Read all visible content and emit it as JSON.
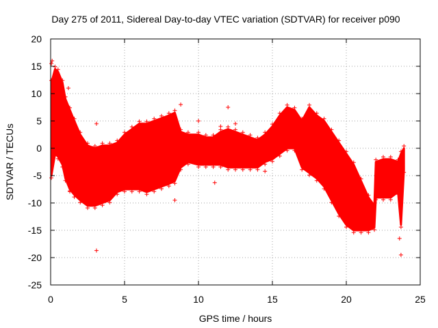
{
  "chart_data": {
    "type": "scatter",
    "title": "Day 275 of 2011, Sidereal Day-to-day VTEC variation (SDTVAR) for receiver p090",
    "xlabel": "GPS time / hours",
    "ylabel": "SDTVAR / TECUs",
    "xlim": [
      0,
      25
    ],
    "ylim": [
      -25,
      20
    ],
    "xticks": [
      0,
      5,
      10,
      15,
      20,
      25
    ],
    "yticks": [
      -25,
      -20,
      -15,
      -10,
      -5,
      0,
      5,
      10,
      15,
      20
    ],
    "xtick_labels": [
      "0",
      "5",
      "10",
      "15",
      "20",
      "25"
    ],
    "ytick_labels": [
      "-25",
      "-20",
      "-15",
      "-10",
      "-5",
      "0",
      "5",
      "10",
      "15",
      "20"
    ],
    "grid": true,
    "marker": "+",
    "color": "#ff0000",
    "series": [
      {
        "name": "p090",
        "envelope": {
          "x": [
            0.05,
            0.3,
            0.5,
            0.8,
            1.0,
            1.3,
            1.6,
            2.0,
            2.5,
            3.0,
            3.5,
            4.0,
            4.5,
            5.0,
            5.5,
            6.0,
            6.5,
            7.0,
            7.5,
            8.0,
            8.4,
            8.8,
            9.3,
            10.0,
            10.5,
            11.0,
            11.5,
            12.0,
            12.5,
            13.0,
            13.5,
            14.0,
            14.5,
            15.0,
            15.5,
            16.0,
            16.5,
            17.0,
            17.5,
            18.0,
            18.5,
            19.0,
            19.5,
            20.0,
            20.5,
            21.0,
            21.5,
            21.9,
            22.0,
            22.5,
            23.0,
            23.5,
            23.7,
            23.9
          ],
          "upper": [
            12.0,
            14.5,
            14.0,
            12.0,
            9.0,
            7.0,
            5.0,
            2.5,
            0.5,
            0.0,
            0.5,
            0.5,
            1.0,
            2.5,
            3.5,
            4.5,
            4.5,
            5.0,
            5.5,
            6.0,
            6.5,
            3.0,
            2.5,
            2.5,
            2.0,
            2.0,
            3.0,
            3.5,
            3.0,
            2.5,
            2.0,
            1.5,
            2.5,
            4.0,
            6.0,
            7.5,
            7.0,
            5.0,
            7.5,
            6.0,
            5.0,
            3.0,
            1.0,
            -1.0,
            -3.0,
            -6.0,
            -9.0,
            -10.5,
            -2.5,
            -2.0,
            -2.0,
            -2.5,
            -1.0,
            0.0
          ],
          "lower": [
            -5.0,
            -1.0,
            -1.5,
            -3.0,
            -5.5,
            -7.5,
            -8.5,
            -9.5,
            -10.5,
            -10.5,
            -10.0,
            -9.5,
            -8.0,
            -7.5,
            -7.5,
            -7.5,
            -8.0,
            -7.5,
            -7.0,
            -6.5,
            -6.0,
            -3.5,
            -2.5,
            -3.0,
            -3.0,
            -3.0,
            -3.0,
            -3.5,
            -3.5,
            -3.5,
            -3.5,
            -3.5,
            -2.5,
            -2.0,
            -1.0,
            0.0,
            0.0,
            -3.5,
            -4.5,
            -5.5,
            -7.0,
            -9.5,
            -12.0,
            -14.0,
            -15.0,
            -15.0,
            -15.0,
            -14.5,
            -9.0,
            -9.0,
            -9.0,
            -8.0,
            -14.0,
            -4.0
          ]
        },
        "outliers": [
          {
            "x": 0.05,
            "y": 15.5
          },
          {
            "x": 0.1,
            "y": 16.0
          },
          {
            "x": 1.2,
            "y": 11.0
          },
          {
            "x": 1.3,
            "y": -7.8
          },
          {
            "x": 3.1,
            "y": 4.5
          },
          {
            "x": 3.1,
            "y": -3.0
          },
          {
            "x": 3.1,
            "y": -18.7
          },
          {
            "x": 5.3,
            "y": 2.0
          },
          {
            "x": 8.4,
            "y": -9.5
          },
          {
            "x": 8.6,
            "y": -4.0
          },
          {
            "x": 8.8,
            "y": 8.0
          },
          {
            "x": 10.0,
            "y": 5.0
          },
          {
            "x": 11.1,
            "y": -6.3
          },
          {
            "x": 11.5,
            "y": 4.0
          },
          {
            "x": 12.0,
            "y": 7.5
          },
          {
            "x": 12.1,
            "y": -2.5
          },
          {
            "x": 12.5,
            "y": 4.5
          },
          {
            "x": 14.5,
            "y": -4.2
          },
          {
            "x": 23.6,
            "y": -16.5
          },
          {
            "x": 23.7,
            "y": -19.5
          }
        ]
      }
    ]
  }
}
